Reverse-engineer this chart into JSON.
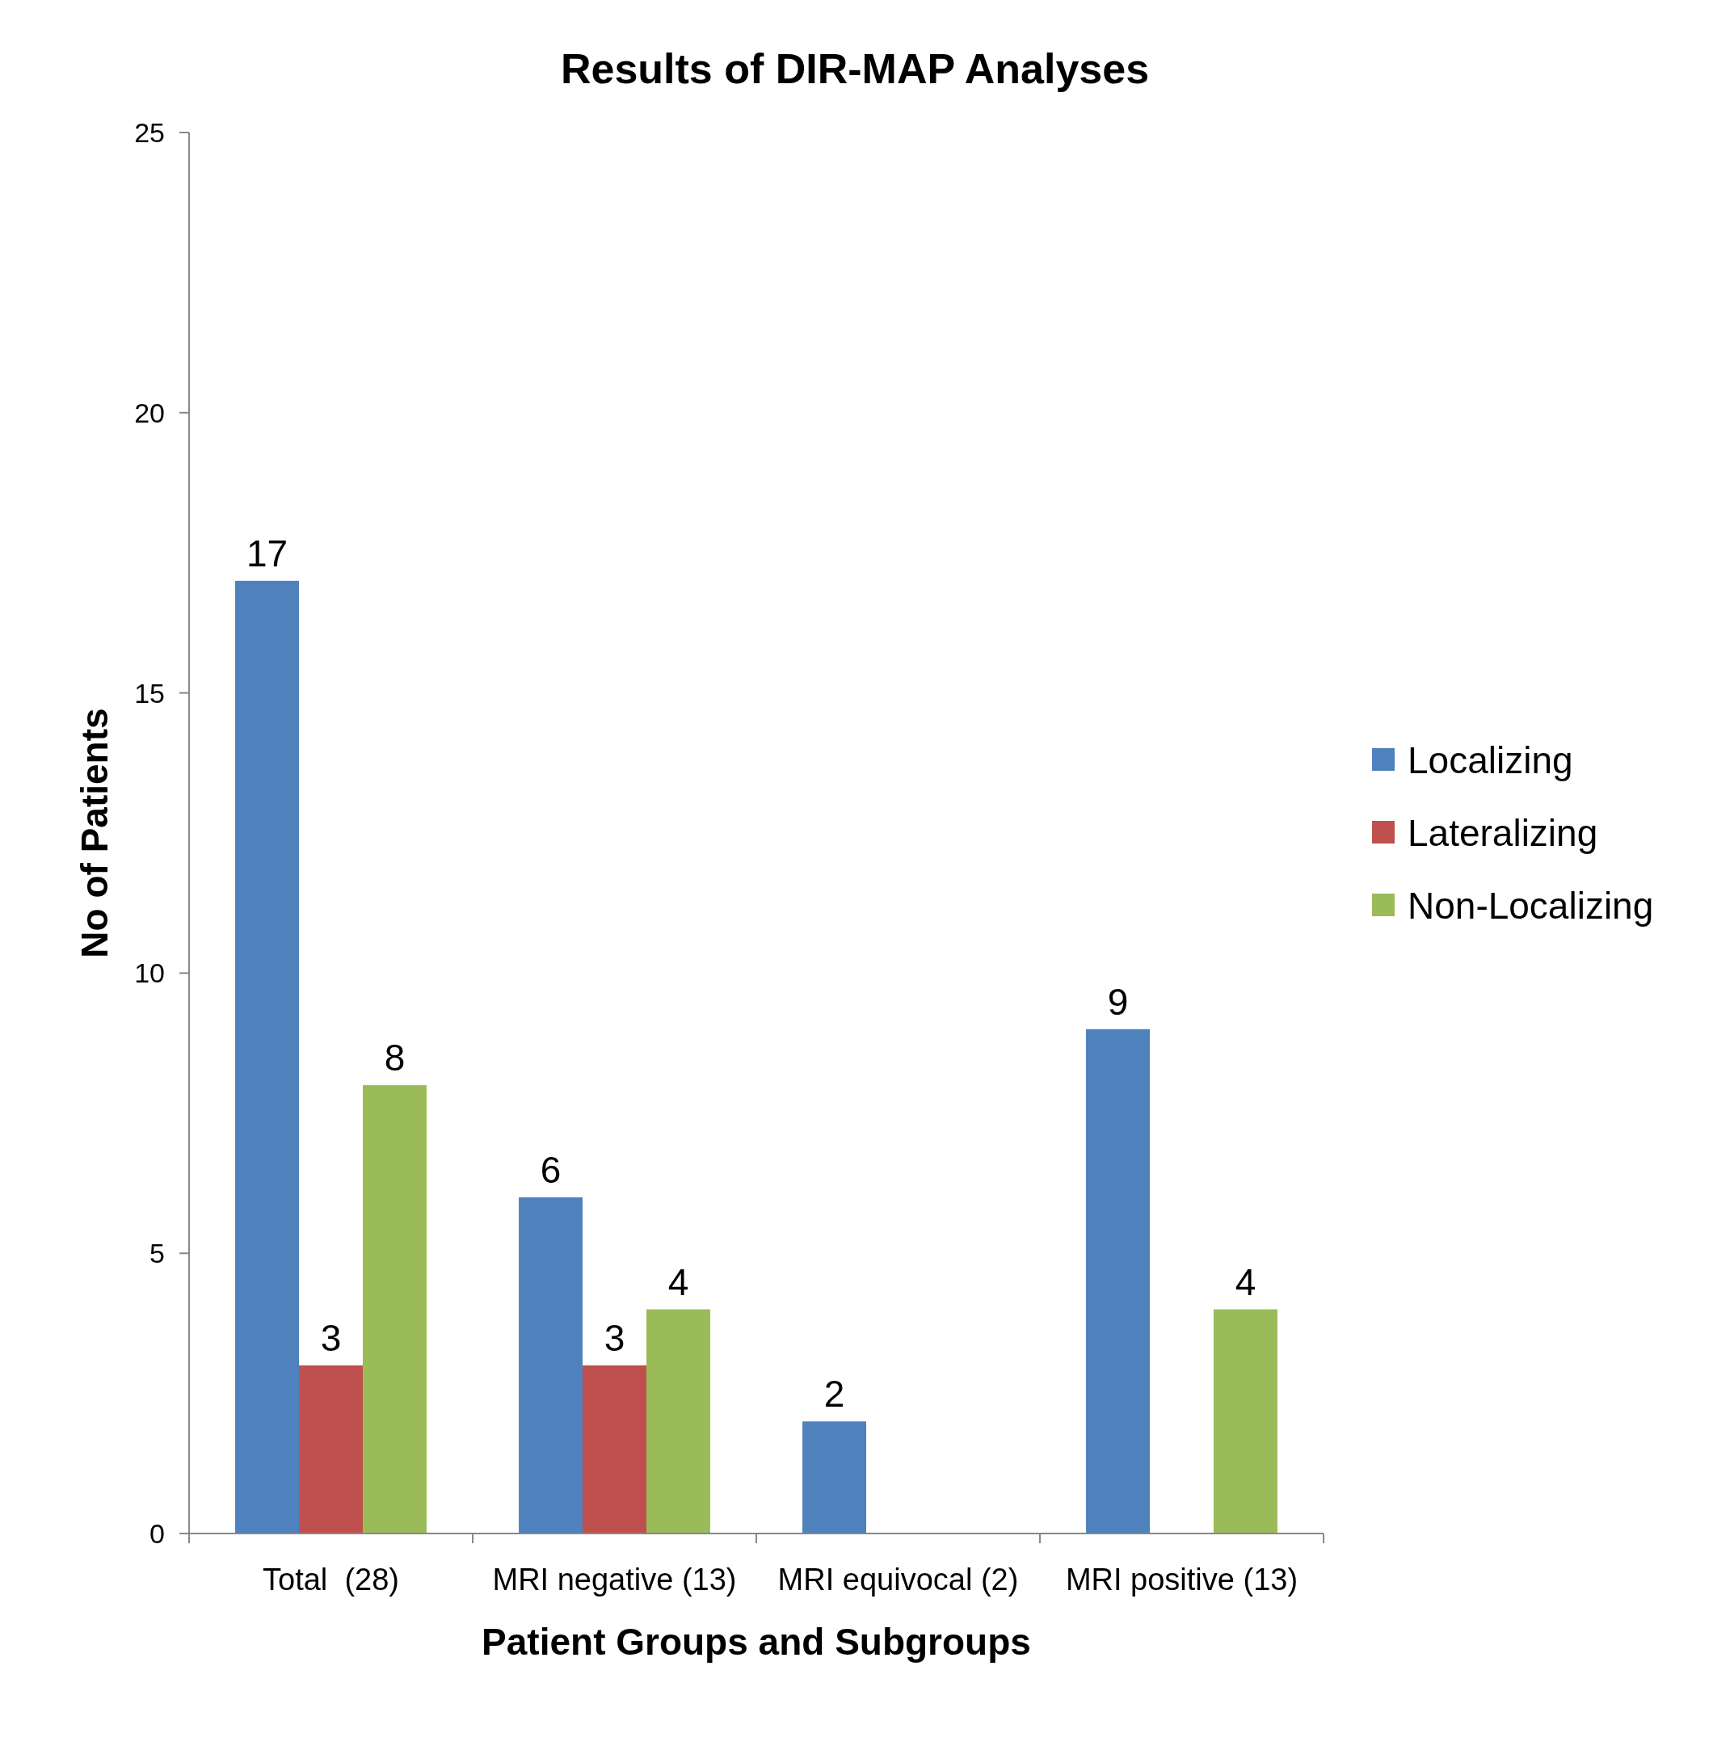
{
  "chart_data": {
    "type": "bar",
    "title": "Results of DIR-MAP Analyses",
    "xlabel": "Patient Groups and Subgroups",
    "ylabel": "No of Patients",
    "categories": [
      "Total  (28)",
      "MRI negative (13)",
      "MRI equivocal (2)",
      "MRI positive (13)"
    ],
    "series": [
      {
        "name": "Localizing",
        "color": "#4f81bd",
        "values": [
          17,
          6,
          2,
          9
        ]
      },
      {
        "name": "Lateralizing",
        "color": "#c0504d",
        "values": [
          3,
          3,
          null,
          null
        ]
      },
      {
        "name": "Non-Localizing",
        "color": "#9bbb59",
        "values": [
          8,
          4,
          null,
          4
        ]
      }
    ],
    "ylim": [
      0,
      25
    ],
    "yticks": [
      0,
      5,
      10,
      15,
      20,
      25
    ],
    "grid": false,
    "legend": "right",
    "data_labels": true
  }
}
